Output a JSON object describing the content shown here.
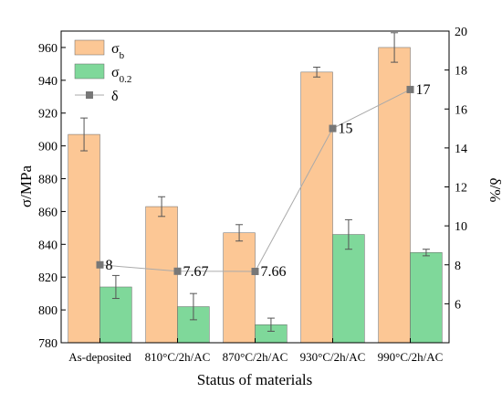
{
  "chart_data": {
    "type": "bar",
    "title": "",
    "xlabel": "Status of materials",
    "ylabel": "σ/MPa",
    "y2label": "δ/%",
    "categories": [
      "As-deposited",
      "810°C/2h/AC",
      "870°C/2h/AC",
      "930°C/2h/AC",
      "990°C/2h/AC"
    ],
    "ylim": [
      780,
      970
    ],
    "yticks": [
      780,
      800,
      820,
      840,
      860,
      880,
      900,
      920,
      940,
      960
    ],
    "y2lim": [
      4,
      20
    ],
    "y2ticks": [
      6,
      8,
      10,
      12,
      14,
      16,
      18,
      20
    ],
    "series": [
      {
        "name": "σb",
        "name_base": "σ",
        "name_sub": "b",
        "axis": "left",
        "kind": "bar",
        "color": "#fcc795",
        "values": [
          907,
          863,
          847,
          945,
          960
        ],
        "errors": [
          10,
          6,
          5,
          3,
          9
        ]
      },
      {
        "name": "σ0.2",
        "name_base": "σ",
        "name_sub": "0.2",
        "axis": "left",
        "kind": "bar",
        "color": "#7fd89a",
        "values": [
          814,
          802,
          791,
          846,
          835
        ],
        "errors": [
          7,
          8,
          4,
          9,
          2
        ]
      },
      {
        "name": "δ",
        "axis": "right",
        "kind": "line",
        "color": "#777777",
        "values": [
          8,
          7.67,
          7.66,
          15,
          17
        ],
        "labels": [
          "8",
          "7.67",
          "7.66",
          "15",
          "17"
        ]
      }
    ],
    "legend": "top-left",
    "grid": false
  }
}
